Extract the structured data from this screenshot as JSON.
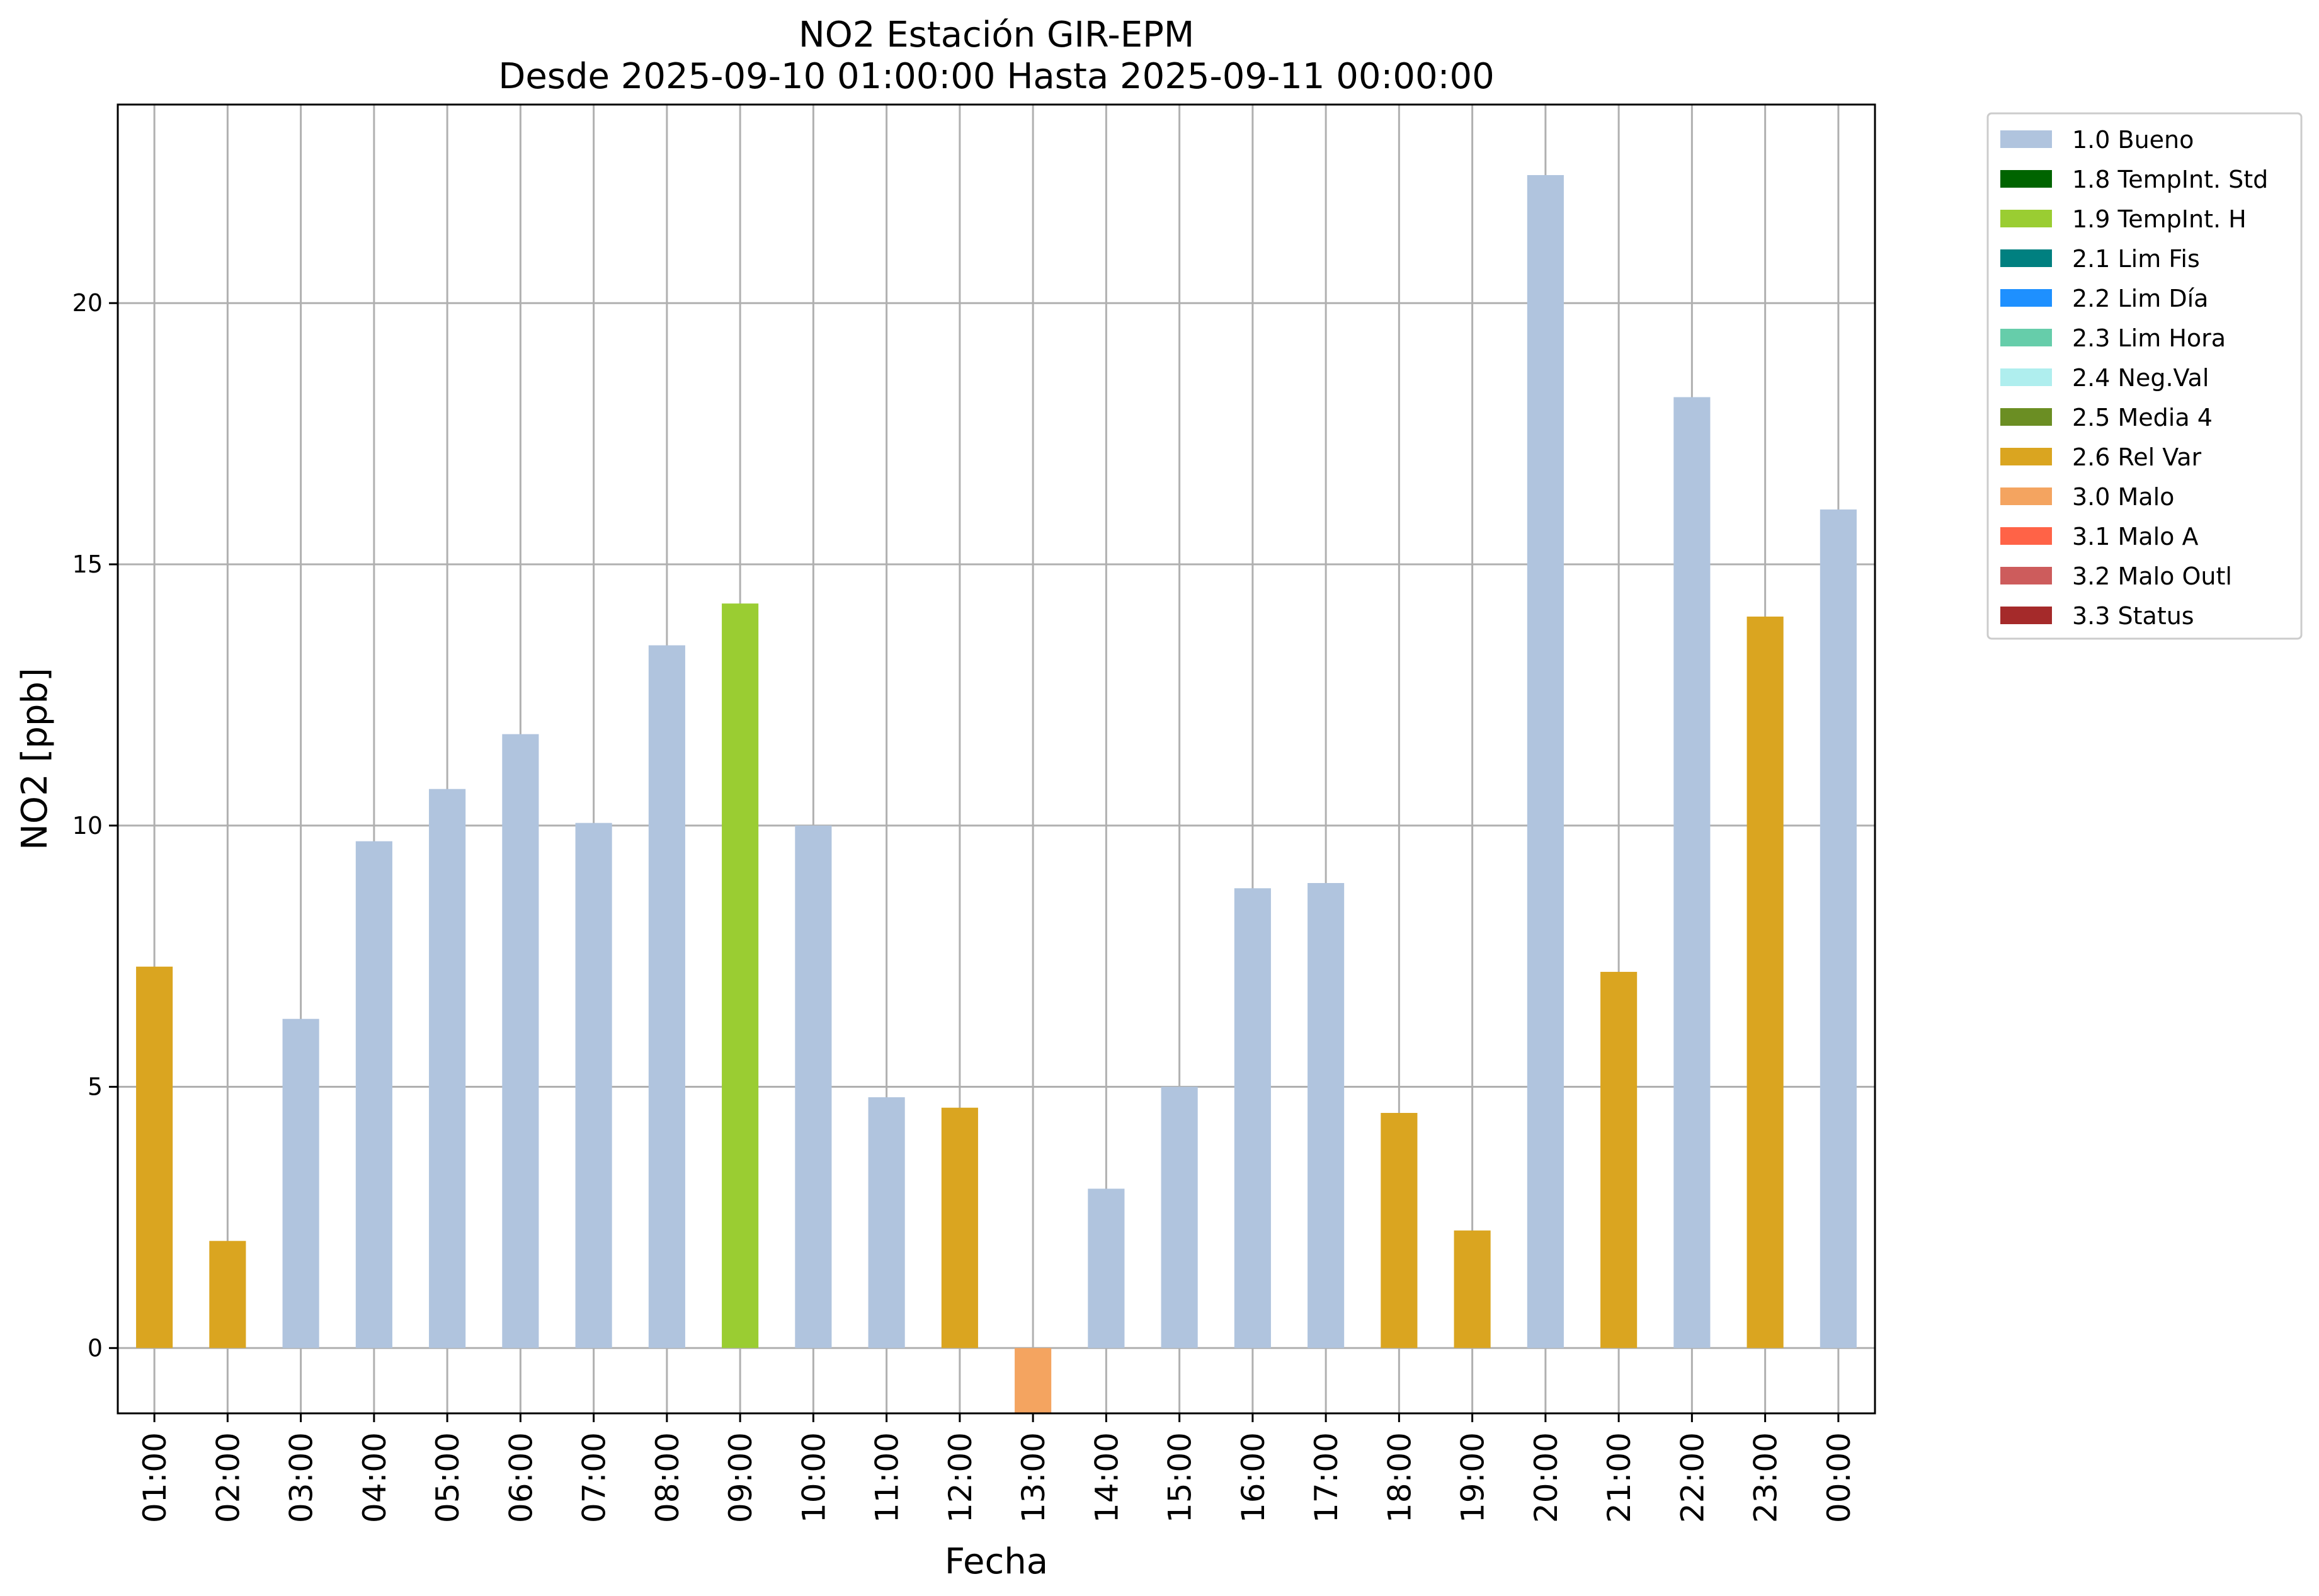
{
  "chart_data": {
    "type": "bar",
    "title": "NO2 Estación GIR-EPM",
    "subtitle": "Desde 2025-09-10 01:00:00 Hasta 2025-09-11 00:00:00",
    "xlabel": "Fecha",
    "ylabel": "NO2 [ppb]",
    "ylim": [
      -1.25,
      23.8
    ],
    "yticks": [
      0,
      5,
      10,
      15,
      20
    ],
    "grid": true,
    "legend_position": "outside-top-right",
    "categories": [
      "01:00",
      "02:00",
      "03:00",
      "04:00",
      "05:00",
      "06:00",
      "07:00",
      "08:00",
      "09:00",
      "10:00",
      "11:00",
      "12:00",
      "13:00",
      "14:00",
      "15:00",
      "16:00",
      "17:00",
      "18:00",
      "19:00",
      "20:00",
      "21:00",
      "22:00",
      "23:00",
      "00:00"
    ],
    "values": [
      7.3,
      2.05,
      6.3,
      9.7,
      10.7,
      11.75,
      10.05,
      13.45,
      14.25,
      10.0,
      4.8,
      4.6,
      -1.25,
      3.05,
      5.0,
      8.8,
      8.9,
      4.5,
      2.25,
      22.45,
      7.2,
      18.2,
      14.0,
      16.05
    ],
    "flags": [
      "2.6 Rel Var",
      "2.6 Rel Var",
      "1.0 Bueno",
      "1.0 Bueno",
      "1.0 Bueno",
      "1.0 Bueno",
      "1.0 Bueno",
      "1.0 Bueno",
      "1.9 TempInt. H",
      "1.0 Bueno",
      "1.0 Bueno",
      "2.6 Rel Var",
      "3.0 Malo",
      "1.0 Bueno",
      "1.0 Bueno",
      "1.0 Bueno",
      "1.0 Bueno",
      "2.6 Rel Var",
      "2.6 Rel Var",
      "1.0 Bueno",
      "2.6 Rel Var",
      "1.0 Bueno",
      "2.6 Rel Var",
      "1.0 Bueno"
    ],
    "legend": [
      {
        "label": "1.0 Bueno",
        "color": "#b0c4de"
      },
      {
        "label": "1.8 TempInt. Std",
        "color": "#006400"
      },
      {
        "label": "1.9 TempInt. H",
        "color": "#9acd32"
      },
      {
        "label": "2.1 Lim Fis",
        "color": "#008080"
      },
      {
        "label": "2.2 Lim Día",
        "color": "#1e90ff"
      },
      {
        "label": "2.3 Lim Hora",
        "color": "#66cdaa"
      },
      {
        "label": "2.4 Neg.Val",
        "color": "#afeeee"
      },
      {
        "label": "2.5 Media 4",
        "color": "#6b8e23"
      },
      {
        "label": "2.6 Rel Var",
        "color": "#daa520"
      },
      {
        "label": "3.0 Malo",
        "color": "#f4a460"
      },
      {
        "label": "3.1 Malo A",
        "color": "#ff6347"
      },
      {
        "label": "3.2 Malo Outl",
        "color": "#cd5c5c"
      },
      {
        "label": "3.3 Status",
        "color": "#a52a2a"
      }
    ]
  }
}
